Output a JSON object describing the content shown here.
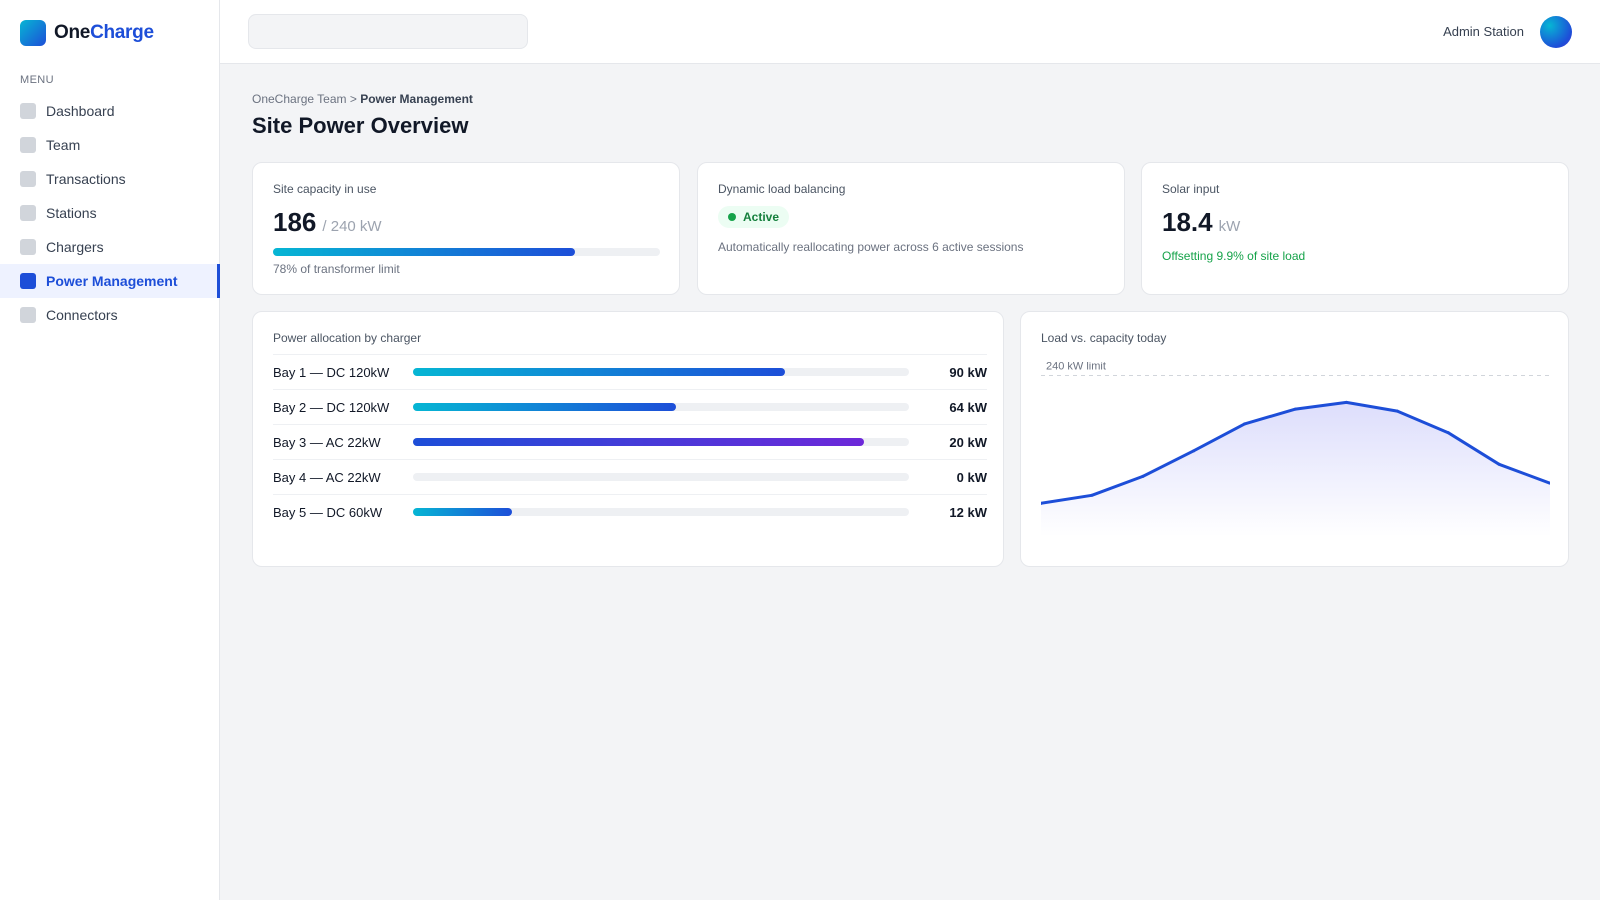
{
  "brand": {
    "name_part1": "One",
    "name_part2": "Charge"
  },
  "sidebar": {
    "menu_heading": "MENU",
    "items": [
      {
        "label": "Dashboard",
        "active": false
      },
      {
        "label": "Team",
        "active": false
      },
      {
        "label": "Transactions",
        "active": false
      },
      {
        "label": "Stations",
        "active": false
      },
      {
        "label": "Chargers",
        "active": false
      },
      {
        "label": "Power Management",
        "active": true
      },
      {
        "label": "Connectors",
        "active": false
      }
    ]
  },
  "topbar": {
    "search_value": "",
    "search_placeholder": "",
    "user_name": "Admin Station"
  },
  "breadcrumb": {
    "parent": "OneCharge Team",
    "separator": ">",
    "current": "Power Management"
  },
  "page_title": "Site Power Overview",
  "kpis": {
    "capacity": {
      "label": "Site capacity in use",
      "value": "186",
      "unit": "/ 240 kW",
      "percent": 78,
      "note": "78% of transformer limit"
    },
    "load_balancing": {
      "label": "Dynamic load balancing",
      "status": "Active",
      "description": "Automatically reallocating power across 6 active sessions"
    },
    "solar": {
      "label": "Solar input",
      "value": "18.4",
      "unit": "kW",
      "note": "Offsetting 9.9% of site load"
    }
  },
  "allocation": {
    "title": "Power allocation by charger",
    "rows": [
      {
        "name": "Bay 1 — DC 120kW",
        "value_label": "90 kW",
        "fill_fraction": 0.75,
        "style": "dc"
      },
      {
        "name": "Bay 2 — DC 120kW",
        "value_label": "64 kW",
        "fill_fraction": 0.53,
        "style": "dc"
      },
      {
        "name": "Bay 3 — AC 22kW",
        "value_label": "20 kW",
        "fill_fraction": 0.91,
        "style": "ac"
      },
      {
        "name": "Bay 4 — AC 22kW",
        "value_label": "0 kW",
        "fill_fraction": 0,
        "style": "ac"
      },
      {
        "name": "Bay 5 — DC 60kW",
        "value_label": "12 kW",
        "fill_fraction": 0.2,
        "style": "dc"
      }
    ]
  },
  "chart_data": {
    "type": "area",
    "title": "Load vs. capacity today",
    "limit": 240,
    "limit_label": "240 kW limit",
    "ylim": [
      0,
      260
    ],
    "series": [
      {
        "values": [
          50,
          62,
          90,
          128,
          168,
          190,
          200,
          187,
          155,
          108,
          80
        ]
      }
    ],
    "color": "#1d4ed8"
  },
  "colors": {
    "accent": "#1d4ed8",
    "dc_gradient": [
      "#06b6d4",
      "#1d4ed8"
    ],
    "ac_gradient": [
      "#1d4ed8",
      "#6d28d9"
    ],
    "success": "#16a34a"
  }
}
